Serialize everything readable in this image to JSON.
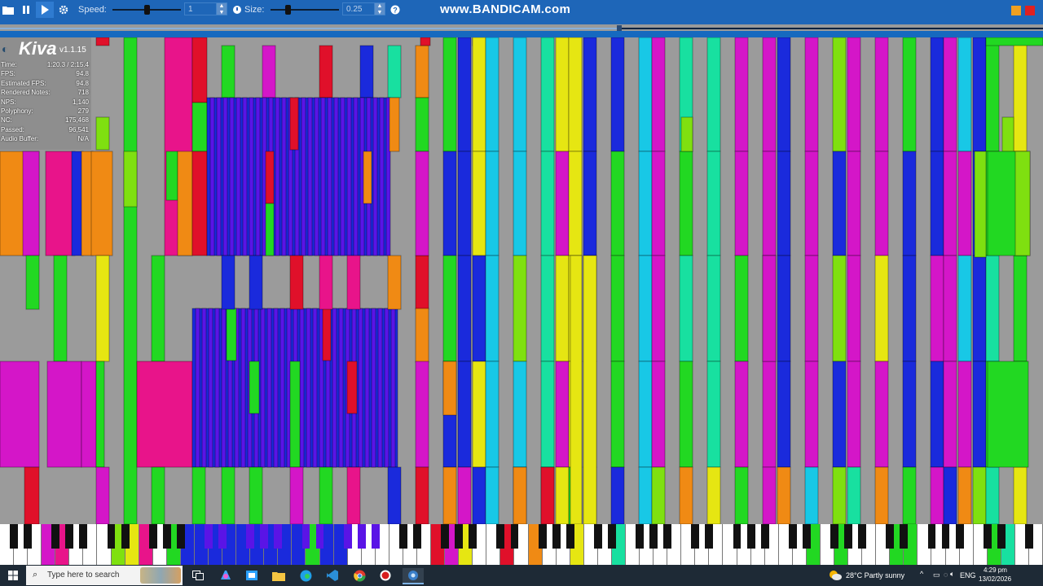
{
  "toolbar": {
    "speed_label": "Speed:",
    "speed_value": "1",
    "size_label": "Size:",
    "size_value": "0.25",
    "speed_slider_fraction": 0.5,
    "size_slider_fraction": 0.25,
    "icons": [
      "folder-icon",
      "pause-icon",
      "play-icon",
      "settings-icon",
      "help-icon"
    ]
  },
  "watermark": "www.BANDICAM.com",
  "playback_progress_fraction": 0.594,
  "app": {
    "name": "Kiva",
    "version": "v1.1.15"
  },
  "stats": [
    {
      "label": "Time:",
      "value": "1:20.3 / 2:15.4"
    },
    {
      "label": "FPS:",
      "value": "94.8"
    },
    {
      "label": "Estimated FPS:",
      "value": "94.8"
    },
    {
      "label": "Rendered Notes:",
      "value": "718"
    },
    {
      "label": "NPS:",
      "value": "1,140"
    },
    {
      "label": "Polyphony:",
      "value": "279"
    },
    {
      "label": "NC:",
      "value": "175,468"
    },
    {
      "label": "Passed:",
      "value": "96,541"
    },
    {
      "label": "Audio Buffer:",
      "value": "N/A"
    }
  ],
  "colors": {
    "red": "#e0102a",
    "magenta": "#d416c8",
    "pink": "#e8148a",
    "orange": "#f08a14",
    "yellow": "#e6e612",
    "lime": "#7fe010",
    "green": "#22d822",
    "teal": "#18e0a0",
    "cyan": "#18c8e6",
    "blue": "#1a2adc",
    "violet": "#5a14e6",
    "navy": "#1010a8",
    "background": "#9b9b9b",
    "toolbar": "#1e66b8",
    "taskbar": "#1e2a36"
  },
  "taskbar": {
    "search_placeholder": "Type here to search",
    "weather": "28°C  Partly sunny",
    "language": "ENG",
    "time": "4:29 pm",
    "date": "13/02/2026",
    "apps": [
      "task-view-icon",
      "copilot-icon",
      "file-explorer-icon",
      "folder-icon",
      "edge-icon",
      "vscode-icon",
      "chrome-icon",
      "bandicam-record-icon",
      "kiva-app-icon"
    ]
  }
}
